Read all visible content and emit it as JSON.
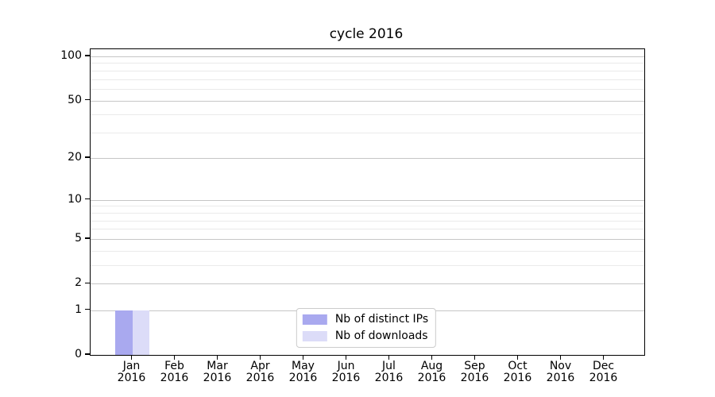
{
  "chart_data": {
    "type": "bar",
    "title": "cycle 2016",
    "categories": [
      "Jan",
      "Feb",
      "Mar",
      "Apr",
      "May",
      "Jun",
      "Jul",
      "Aug",
      "Sep",
      "Oct",
      "Nov",
      "Dec"
    ],
    "category_year": "2016",
    "series": [
      {
        "name": "Nb of distinct IPs",
        "color": "#a9a9ef",
        "values": [
          1,
          0,
          0,
          0,
          0,
          0,
          0,
          0,
          0,
          0,
          0,
          0
        ]
      },
      {
        "name": "Nb of downloads",
        "color": "#dcdcf8",
        "values": [
          1,
          0,
          0,
          0,
          0,
          0,
          0,
          0,
          0,
          0,
          0,
          0
        ]
      }
    ],
    "xlabel": "",
    "ylabel": "",
    "y_axis": {
      "scale": "log1p",
      "lim": [
        0,
        100
      ],
      "major_ticks": [
        0,
        1,
        2,
        5,
        10,
        20,
        50,
        100
      ],
      "minor_ticks": [
        3,
        4,
        6,
        7,
        8,
        9,
        30,
        40,
        60,
        70,
        80,
        90
      ]
    },
    "grid": {
      "axis": "y",
      "major_color": "#c6c6c6",
      "minor_color": "#eaeaea"
    },
    "legend": {
      "position": "lower center",
      "entries": [
        "Nb of distinct IPs",
        "Nb of downloads"
      ]
    },
    "colors": {
      "spine": "#000000",
      "text": "#000000",
      "background": "#ffffff"
    }
  }
}
